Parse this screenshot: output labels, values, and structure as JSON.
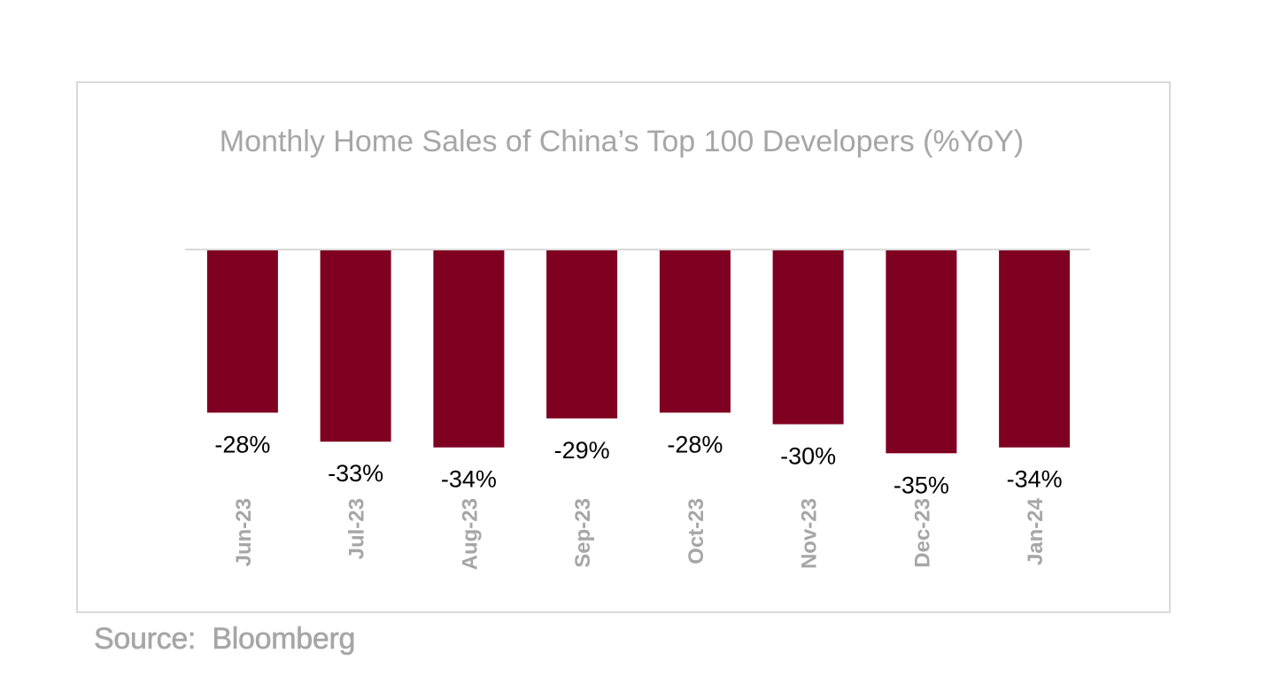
{
  "chart_data": {
    "type": "bar",
    "title": "Monthly Home Sales of China’s Top 100 Developers (%YoY)",
    "categories": [
      "Jun-23",
      "Jul-23",
      "Aug-23",
      "Sep-23",
      "Oct-23",
      "Nov-23",
      "Dec-23",
      "Jan-24"
    ],
    "values": [
      -28,
      -33,
      -34,
      -29,
      -28,
      -30,
      -35,
      -34
    ],
    "data_labels": [
      "-28%",
      "-33%",
      "-34%",
      "-29%",
      "-28%",
      "-30%",
      "-35%",
      "-34%"
    ],
    "xlabel": "",
    "ylabel": "",
    "ylim": [
      -35,
      0
    ],
    "grid": false,
    "legend": "none",
    "bar_color": "#7f0021",
    "title_color": "#a6a6a6",
    "tick_label_color": "#a6a6a6"
  },
  "source": "Source:  Bloomberg"
}
